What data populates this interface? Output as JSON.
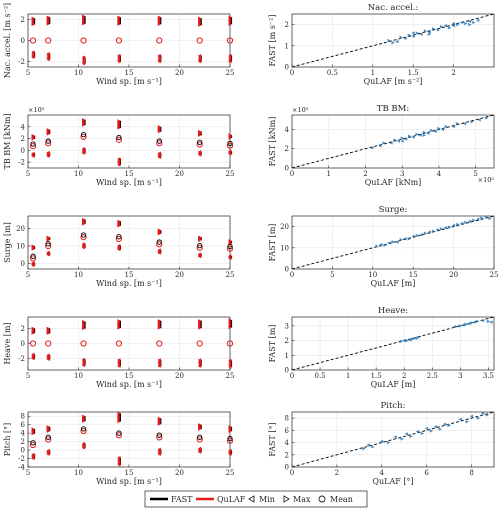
{
  "chart_data": [
    {
      "type": "scatter",
      "row": 0,
      "ylabel": "Nac. accel. [m s⁻²]",
      "xlabel": "Wind sp. [m s⁻¹]",
      "xlim": [
        5,
        25
      ],
      "ylim": [
        -2.5,
        2.5
      ],
      "xticks": [
        5,
        10,
        15,
        20,
        25
      ],
      "yticks": [
        -2,
        0,
        2
      ],
      "x": [
        5.5,
        7,
        10.5,
        14,
        18,
        22,
        25
      ],
      "mean": [
        0,
        0,
        0,
        0,
        0,
        0,
        0
      ],
      "max": [
        2.1,
        2.2,
        2.3,
        2.2,
        2.2,
        2.1,
        2.2
      ],
      "min": [
        -1.6,
        -1.8,
        -2.2,
        -2.0,
        -2.0,
        -2.0,
        -2.0
      ]
    },
    {
      "type": "scatter",
      "row": 0,
      "title": "Nac. accel.:",
      "xlabel": "QuLAF [m s⁻²]",
      "ylabel": "FAST [m s⁻²]",
      "xlim": [
        0,
        2.5
      ],
      "ylim": [
        0,
        2.5
      ],
      "xticks": [
        0,
        0.5,
        1,
        1.5,
        2
      ],
      "yticks": [
        0,
        1,
        2
      ],
      "points": [
        [
          1.2,
          1.25
        ],
        [
          1.3,
          1.2
        ],
        [
          1.35,
          1.4
        ],
        [
          1.4,
          1.35
        ],
        [
          1.45,
          1.5
        ],
        [
          1.5,
          1.45
        ],
        [
          1.55,
          1.6
        ],
        [
          1.6,
          1.55
        ],
        [
          1.65,
          1.7
        ],
        [
          1.7,
          1.65
        ],
        [
          1.75,
          1.8
        ],
        [
          1.8,
          1.75
        ],
        [
          1.85,
          1.9
        ],
        [
          1.9,
          1.95
        ],
        [
          1.95,
          1.85
        ],
        [
          2.0,
          2.05
        ],
        [
          2.05,
          2.0
        ],
        [
          2.1,
          2.1
        ],
        [
          2.15,
          2.05
        ],
        [
          2.2,
          2.15
        ],
        [
          2.25,
          2.1
        ],
        [
          2.3,
          2.2
        ],
        [
          1.25,
          1.15
        ],
        [
          1.5,
          1.6
        ],
        [
          1.7,
          1.55
        ],
        [
          2.0,
          1.95
        ],
        [
          2.2,
          2.0
        ]
      ]
    },
    {
      "type": "scatter",
      "row": 1,
      "ylabel": "TB BM [kNm]",
      "xlabel": "Wind sp. [m s⁻¹]",
      "exponent": "×10⁵",
      "xlim": [
        5,
        25
      ],
      "ylim": [
        -3,
        6
      ],
      "xticks": [
        5,
        10,
        15,
        20,
        25
      ],
      "yticks": [
        -2,
        0,
        2,
        4
      ],
      "x": [
        5.5,
        7,
        10.5,
        14,
        18,
        22,
        25
      ],
      "mean": [
        0.7,
        1.2,
        2.3,
        1.8,
        1.2,
        1.0,
        0.8
      ],
      "max": [
        2.5,
        3.5,
        5.2,
        5.0,
        4.0,
        3.2,
        2.6
      ],
      "min": [
        -1.0,
        -1.0,
        -0.5,
        -2.5,
        -1.2,
        -0.8,
        -0.6
      ]
    },
    {
      "type": "scatter",
      "row": 1,
      "title": "TB BM:",
      "xlabel": "QuLAF [kNm]",
      "ylabel": "FAST [kNm]",
      "exponent": "×10⁵",
      "xlim": [
        0,
        5.5
      ],
      "ylim": [
        0,
        5.5
      ],
      "xticks": [
        0,
        1,
        2,
        3,
        4,
        5
      ],
      "yticks": [
        0,
        2,
        4
      ],
      "points": [
        [
          2.2,
          2.1
        ],
        [
          2.4,
          2.3
        ],
        [
          2.5,
          2.6
        ],
        [
          2.7,
          2.6
        ],
        [
          2.8,
          2.9
        ],
        [
          2.9,
          2.8
        ],
        [
          3.0,
          3.1
        ],
        [
          3.1,
          3.0
        ],
        [
          3.2,
          3.3
        ],
        [
          3.3,
          3.2
        ],
        [
          3.4,
          3.5
        ],
        [
          3.5,
          3.4
        ],
        [
          3.6,
          3.7
        ],
        [
          3.7,
          3.6
        ],
        [
          3.8,
          3.9
        ],
        [
          3.9,
          3.8
        ],
        [
          4.0,
          4.1
        ],
        [
          4.1,
          4.0
        ],
        [
          4.2,
          4.3
        ],
        [
          4.4,
          4.3
        ],
        [
          4.5,
          4.6
        ],
        [
          4.7,
          4.6
        ],
        [
          4.9,
          4.8
        ],
        [
          5.1,
          5.0
        ],
        [
          5.3,
          5.2
        ],
        [
          3.0,
          2.8
        ],
        [
          3.6,
          3.4
        ]
      ]
    },
    {
      "type": "scatter",
      "row": 2,
      "ylabel": "Surge [m]",
      "xlabel": "Wind sp. [m s⁻¹]",
      "xlim": [
        5,
        25
      ],
      "ylim": [
        -3,
        27
      ],
      "xticks": [
        5,
        10,
        15,
        20,
        25
      ],
      "yticks": [
        0,
        10,
        20
      ],
      "x": [
        5.5,
        7,
        10.5,
        14,
        18,
        22,
        25
      ],
      "mean": [
        3,
        10,
        15,
        14,
        11,
        9,
        8.5
      ],
      "max": [
        10,
        15,
        25,
        24,
        19,
        15,
        13
      ],
      "min": [
        -1,
        5,
        9,
        8,
        6,
        4,
        3
      ]
    },
    {
      "type": "scatter",
      "row": 2,
      "title": "Surge:",
      "xlabel": "QuLAF [m]",
      "ylabel": "FAST [m]",
      "xlim": [
        0,
        25
      ],
      "ylim": [
        0,
        25
      ],
      "xticks": [
        0,
        5,
        10,
        15,
        20,
        25
      ],
      "yticks": [
        0,
        10,
        20
      ],
      "points": [
        [
          10.5,
          10.8
        ],
        [
          11,
          11.5
        ],
        [
          11.5,
          11.2
        ],
        [
          12,
          12.3
        ],
        [
          12.5,
          12.8
        ],
        [
          13,
          12.7
        ],
        [
          13.5,
          13.9
        ],
        [
          14,
          14.3
        ],
        [
          14.5,
          14.2
        ],
        [
          15,
          15.4
        ],
        [
          15.5,
          15.8
        ],
        [
          16,
          16.2
        ],
        [
          16.5,
          16.9
        ],
        [
          17,
          17.4
        ],
        [
          17.5,
          17.8
        ],
        [
          18,
          18.5
        ],
        [
          18.5,
          18.9
        ],
        [
          19,
          19.5
        ],
        [
          19.5,
          19.8
        ],
        [
          20,
          20.6
        ],
        [
          20.5,
          21.0
        ],
        [
          21,
          21.5
        ],
        [
          21.5,
          22.0
        ],
        [
          22,
          22.5
        ],
        [
          22.5,
          23.0
        ],
        [
          23,
          23.5
        ],
        [
          23.5,
          24.0
        ],
        [
          24,
          24.5
        ],
        [
          24.5,
          23.8
        ]
      ]
    },
    {
      "type": "scatter",
      "row": 3,
      "ylabel": "Heave [m]",
      "xlabel": "Wind sp. [m s⁻¹]",
      "xlim": [
        5,
        25
      ],
      "ylim": [
        -3.5,
        3.5
      ],
      "xticks": [
        5,
        10,
        15,
        20,
        25
      ],
      "yticks": [
        -2,
        0,
        2
      ],
      "x": [
        5.5,
        7,
        10.5,
        14,
        18,
        22,
        25
      ],
      "mean": [
        0,
        0,
        0,
        0,
        0,
        0,
        0
      ],
      "max": [
        2.0,
        2.0,
        2.9,
        3.0,
        3.0,
        3.0,
        3.1
      ],
      "min": [
        -2.0,
        -2.1,
        -2.9,
        -3.0,
        -3.0,
        -3.0,
        -3.1
      ]
    },
    {
      "type": "scatter",
      "row": 3,
      "title": "Heave:",
      "xlabel": "QuLAF [m]",
      "ylabel": "FAST [m]",
      "xlim": [
        0,
        3.6
      ],
      "ylim": [
        0,
        3.6
      ],
      "xticks": [
        0,
        0.5,
        1,
        1.5,
        2,
        2.5,
        3,
        3.5
      ],
      "yticks": [
        0,
        1,
        2,
        3
      ],
      "points": [
        [
          1.95,
          1.95
        ],
        [
          2.0,
          2.0
        ],
        [
          2.05,
          2.0
        ],
        [
          2.1,
          2.05
        ],
        [
          2.15,
          2.1
        ],
        [
          2.2,
          2.15
        ],
        [
          2.25,
          2.2
        ],
        [
          2.9,
          2.95
        ],
        [
          3.0,
          3.0
        ],
        [
          3.05,
          3.05
        ],
        [
          3.1,
          3.1
        ],
        [
          3.15,
          3.15
        ],
        [
          3.2,
          3.2
        ],
        [
          3.25,
          3.25
        ],
        [
          3.3,
          3.3
        ],
        [
          3.4,
          3.35
        ],
        [
          3.5,
          3.3
        ],
        [
          3.55,
          3.25
        ]
      ]
    },
    {
      "type": "scatter",
      "row": 4,
      "ylabel": "Pitch [°]",
      "xlabel": "Wind sp. [m s⁻¹]",
      "xlim": [
        5,
        25
      ],
      "ylim": [
        -4,
        9
      ],
      "xticks": [
        5,
        10,
        15,
        20,
        25
      ],
      "yticks": [
        -4,
        -2,
        0,
        2,
        4,
        6,
        8
      ],
      "x": [
        5.5,
        7,
        10.5,
        14,
        18,
        22,
        25
      ],
      "mean": [
        1.2,
        2.5,
        4.5,
        3.5,
        3.0,
        2.5,
        2.2
      ],
      "max": [
        5.0,
        5.5,
        8.0,
        8.7,
        7.5,
        6.0,
        5.5
      ],
      "min": [
        -2.0,
        -1.0,
        0.5,
        -3.5,
        -1.0,
        -0.5,
        -1.0
      ]
    },
    {
      "type": "scatter",
      "row": 4,
      "title": "Pitch:",
      "xlabel": "QuLAF [°]",
      "ylabel": "FAST [°]",
      "xlim": [
        0,
        9
      ],
      "ylim": [
        0,
        9
      ],
      "xticks": [
        0,
        2,
        4,
        6,
        8
      ],
      "yticks": [
        0,
        2,
        4,
        6,
        8
      ],
      "points": [
        [
          3.2,
          3.0
        ],
        [
          3.4,
          3.6
        ],
        [
          3.6,
          3.3
        ],
        [
          4.0,
          4.2
        ],
        [
          4.3,
          4.0
        ],
        [
          4.6,
          4.9
        ],
        [
          4.9,
          4.6
        ],
        [
          5.1,
          5.4
        ],
        [
          5.3,
          5.0
        ],
        [
          5.6,
          5.8
        ],
        [
          5.8,
          5.5
        ],
        [
          6.0,
          6.3
        ],
        [
          6.2,
          5.9
        ],
        [
          6.4,
          6.6
        ],
        [
          6.6,
          6.2
        ],
        [
          6.8,
          7.0
        ],
        [
          7.0,
          6.8
        ],
        [
          7.5,
          7.8
        ],
        [
          7.8,
          7.4
        ],
        [
          8.0,
          8.3
        ],
        [
          8.3,
          8.0
        ],
        [
          8.5,
          8.8
        ],
        [
          8.7,
          8.5
        ]
      ]
    }
  ],
  "legend": {
    "fast": "FAST",
    "qulaf": "QuLAF",
    "min": "Min",
    "max": "Max",
    "mean": "Mean"
  },
  "colors": {
    "fast": "#000000",
    "qulaf": "#e41a1c",
    "scatter": "#2a7ab9",
    "axis": "#262626",
    "grid": "#e6e6e6"
  }
}
